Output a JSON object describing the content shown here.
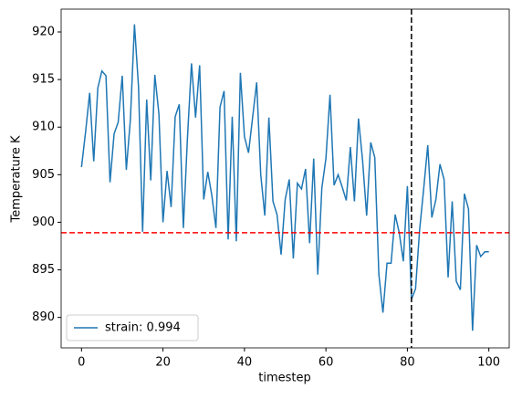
{
  "chart_data": {
    "type": "line",
    "xlabel": "timestep",
    "ylabel": "Temperature K",
    "x": [
      0,
      1,
      2,
      3,
      4,
      5,
      6,
      7,
      8,
      9,
      10,
      11,
      12,
      13,
      14,
      15,
      16,
      17,
      18,
      19,
      20,
      21,
      22,
      23,
      24,
      25,
      26,
      27,
      28,
      29,
      30,
      31,
      32,
      33,
      34,
      35,
      36,
      37,
      38,
      39,
      40,
      41,
      42,
      43,
      44,
      45,
      46,
      47,
      48,
      49,
      50,
      51,
      52,
      53,
      54,
      55,
      56,
      57,
      58,
      59,
      60,
      61,
      62,
      63,
      64,
      65,
      66,
      67,
      68,
      69,
      70,
      71,
      72,
      73,
      74,
      75,
      76,
      77,
      78,
      79,
      80,
      81,
      82,
      83,
      84,
      85,
      86,
      87,
      88,
      89,
      90,
      91,
      92,
      93,
      94,
      95,
      96,
      97,
      98,
      99,
      100
    ],
    "series": [
      {
        "name": "strain: 0.994",
        "color": "#1f77b4",
        "values": [
          905.8,
          909.5,
          913.6,
          906.4,
          914.1,
          915.9,
          915.4,
          904.2,
          909.3,
          910.5,
          915.4,
          905.5,
          910.8,
          920.8,
          914.2,
          899.0,
          912.9,
          904.4,
          915.5,
          911.4,
          900.0,
          905.4,
          901.6,
          911.1,
          912.4,
          899.4,
          908.8,
          916.7,
          911.0,
          916.5,
          902.4,
          905.3,
          902.8,
          899.4,
          912.1,
          913.8,
          898.2,
          911.1,
          898.0,
          915.7,
          909.0,
          907.3,
          911.0,
          914.7,
          905.0,
          900.7,
          911.0,
          902.2,
          900.8,
          896.6,
          902.4,
          904.5,
          896.2,
          904.1,
          903.5,
          905.6,
          897.8,
          906.7,
          894.5,
          903.6,
          906.7,
          913.4,
          903.9,
          905.0,
          903.7,
          902.3,
          907.9,
          902.2,
          910.9,
          906.5,
          900.7,
          908.4,
          906.8,
          894.5,
          890.5,
          895.7,
          895.7,
          900.8,
          898.9,
          895.9,
          903.8,
          891.9,
          893.0,
          899.2,
          903.5,
          908.1,
          900.5,
          902.4,
          906.1,
          904.5,
          894.2,
          902.2,
          893.8,
          892.9,
          903.0,
          901.4,
          888.6,
          897.6,
          896.4,
          896.9,
          896.9
        ]
      }
    ],
    "hline": {
      "value": 898.9,
      "color": "#ff0000"
    },
    "vline": {
      "value": 81,
      "color": "#000000"
    },
    "xlim": [
      -5,
      105
    ],
    "xticks": [
      0,
      20,
      40,
      60,
      80,
      100
    ],
    "ylim": [
      886.8,
      922.4
    ],
    "yticks": [
      890,
      895,
      900,
      905,
      910,
      915,
      920
    ],
    "legend": "lower left"
  }
}
